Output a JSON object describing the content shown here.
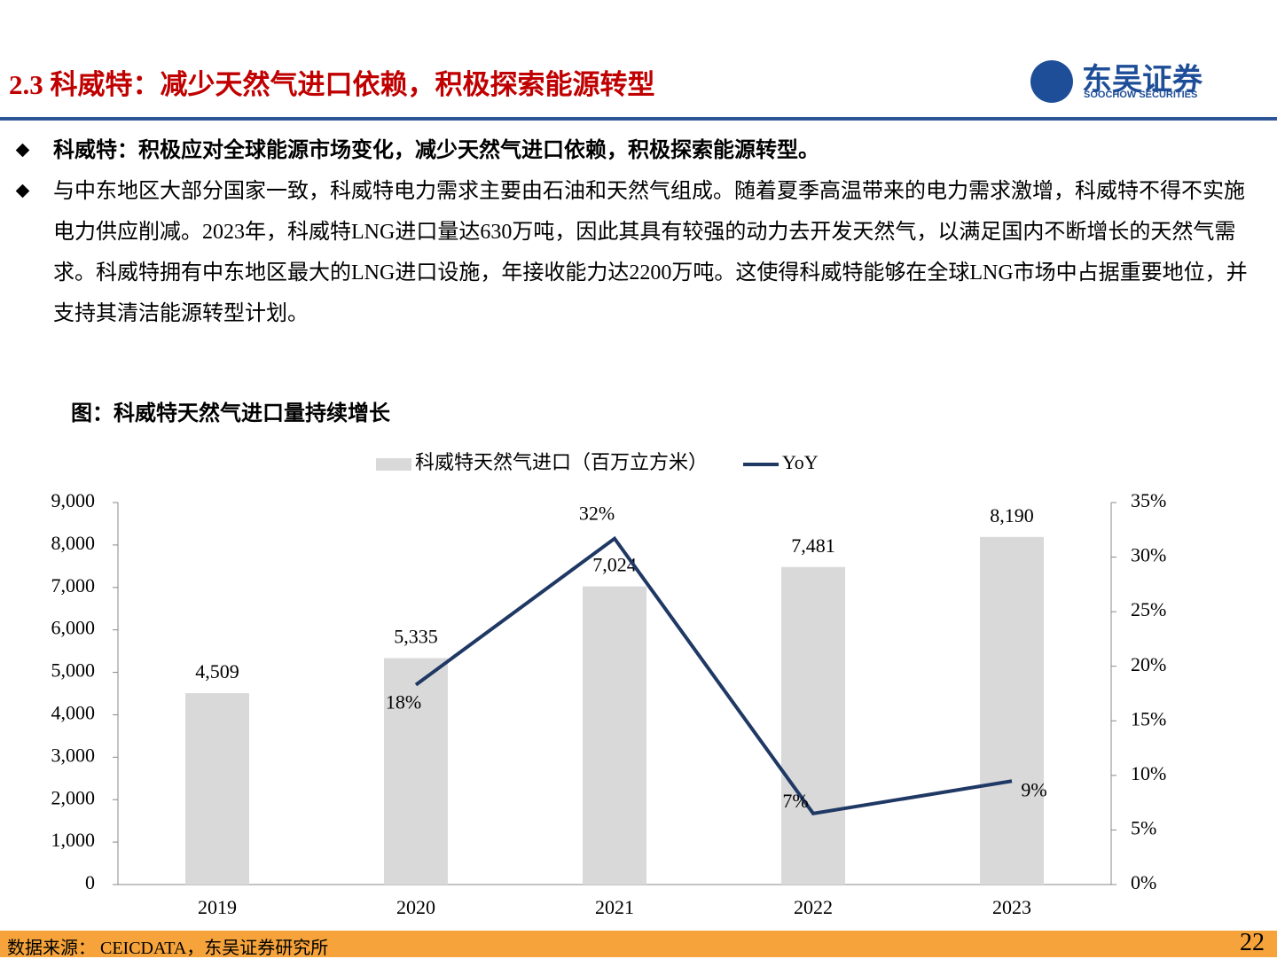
{
  "header": {
    "title": "2.3 科威特：减少天然气进口依赖，积极探索能源转型",
    "logo_name": "东吴证券",
    "logo_sub": "SOOCHOW SECURITIES"
  },
  "bullets": [
    "科威特：积极应对全球能源市场变化，减少天然气进口依赖，积极探索能源转型。",
    "与中东地区大部分国家一致，科威特电力需求主要由石油和天然气组成。随着夏季高温带来的电力需求激增，科威特不得不实施电力供应削减。2023年，科威特LNG进口量达630万吨，因此其具有较强的动力去开发天然气，以满足国内不断增长的天然气需求。科威特拥有中东地区最大的LNG进口设施，年接收能力达2200万吨。这使得科威特能够在全球LNG市场中占据重要地位，并支持其清洁能源转型计划。"
  ],
  "chart_data": {
    "type": "bar",
    "title": "图：科威特天然气进口量持续增长",
    "categories": [
      "2019",
      "2020",
      "2021",
      "2022",
      "2023"
    ],
    "series": [
      {
        "name": "科威特天然气进口（百万立方米）",
        "type": "bar",
        "color": "#d9d9d9",
        "values": [
          4509,
          5335,
          7024,
          7481,
          8190
        ],
        "value_labels": [
          "4,509",
          "5,335",
          "7,024",
          "7,481",
          "8,190"
        ]
      },
      {
        "name": "YoY",
        "type": "line",
        "axis": "y2",
        "color": "#1f3864",
        "values": [
          null,
          18.3,
          31.7,
          6.51,
          9.48
        ],
        "value_labels": [
          null,
          "18%",
          "32%",
          "7%",
          "9%"
        ]
      }
    ],
    "ylim": [
      0,
      9000
    ],
    "yticks": [
      0,
      {
        "value": 1000,
        "label": "1,000"
      },
      {
        "value": 2000,
        "label": "2,000"
      },
      {
        "value": 3000,
        "label": "3,000"
      },
      {
        "value": 4000,
        "label": "4,000"
      },
      {
        "value": 5000,
        "label": "5,000"
      },
      {
        "value": 6000,
        "label": "6,000"
      },
      {
        "value": 7000,
        "label": "7,000"
      },
      {
        "value": 8000,
        "label": "8,000"
      },
      {
        "value": 9000,
        "label": "9,000"
      }
    ],
    "y2lim": [
      0,
      35
    ],
    "y2ticks": [
      {
        "value": 0,
        "label": "0%"
      },
      {
        "value": 5,
        "label": "5%"
      },
      {
        "value": 10,
        "label": "10%"
      },
      {
        "value": 15,
        "label": "15%"
      },
      {
        "value": 20,
        "label": "20%"
      },
      {
        "value": 25,
        "label": "25%"
      },
      {
        "value": 30,
        "label": "30%"
      },
      {
        "value": 35,
        "label": "35%"
      }
    ],
    "grid": false
  },
  "footer": {
    "source": "数据来源： CEICDATA，东吴证券研究所",
    "page": "22"
  }
}
